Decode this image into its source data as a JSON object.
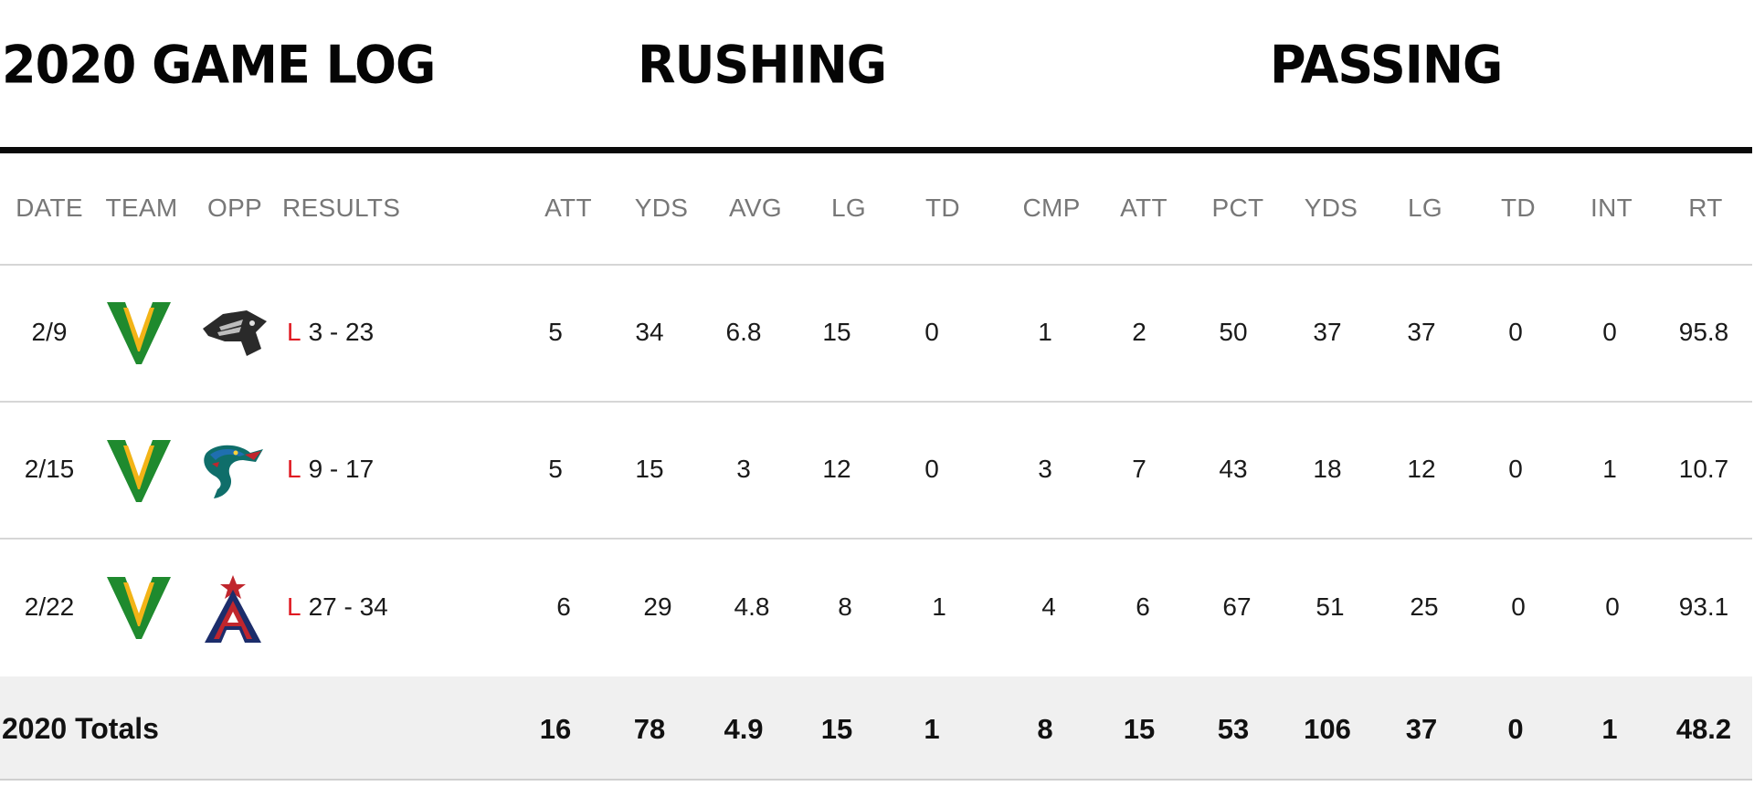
{
  "sections": {
    "game_log_title": "2020 GAME LOG",
    "rushing_title": "RUSHING",
    "passing_title": "PASSING"
  },
  "headers": {
    "date": "DATE",
    "team": "TEAM",
    "opp": "OPP",
    "results": "RESULTS",
    "rushing": [
      "ATT",
      "YDS",
      "AVG",
      "LG",
      "TD"
    ],
    "passing": [
      "CMP",
      "ATT",
      "PCT",
      "YDS",
      "LG",
      "TD",
      "INT",
      "RT"
    ]
  },
  "games": [
    {
      "date": "2/9",
      "team_logo": "vipers-v-logo",
      "opp_logo": "renegades-logo",
      "outcome": "L",
      "score": "3 - 23",
      "rushing": [
        "5",
        "34",
        "6.8",
        "15",
        "0"
      ],
      "passing": [
        "1",
        "2",
        "50",
        "37",
        "37",
        "0",
        "0",
        "95.8"
      ]
    },
    {
      "date": "2/15",
      "team_logo": "vipers-v-logo",
      "opp_logo": "dragons-logo",
      "outcome": "L",
      "score": "9 - 17",
      "rushing": [
        "5",
        "15",
        "3",
        "12",
        "0"
      ],
      "passing": [
        "3",
        "7",
        "43",
        "18",
        "12",
        "0",
        "1",
        "10.7"
      ]
    },
    {
      "date": "2/22",
      "team_logo": "vipers-v-logo",
      "opp_logo": "wildcats-logo",
      "outcome": "L",
      "score": "27 - 34",
      "rushing": [
        "6",
        "29",
        "4.8",
        "8",
        "1"
      ],
      "passing": [
        "4",
        "6",
        "67",
        "51",
        "25",
        "0",
        "0",
        "93.1"
      ]
    }
  ],
  "totals": {
    "label": "2020 Totals",
    "rushing": [
      "16",
      "78",
      "4.9",
      "15",
      "1"
    ],
    "passing": [
      "8",
      "15",
      "53",
      "106",
      "37",
      "0",
      "1",
      "48.2"
    ]
  },
  "colors": {
    "loss": "#e01a22",
    "vipers_green": "#1f8a2e",
    "vipers_gold": "#f2b417"
  }
}
